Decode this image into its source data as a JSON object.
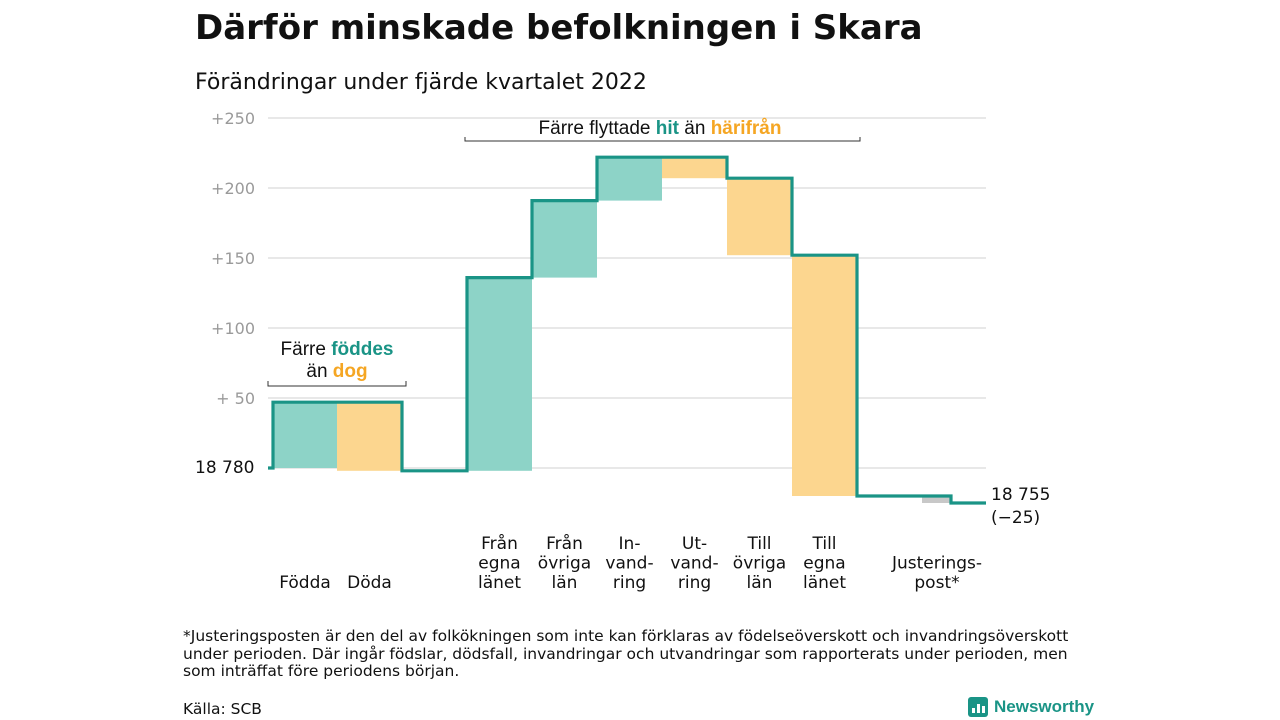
{
  "title": "Därför minskade befolkningen i Skara",
  "subtitle": "Förändringar under fjärde kvartalet 2022",
  "footnote": "*Justeringsposten är den del av folkökningen som inte kan förklaras av födelseöverskott och invandringsöverskott under perioden. Där ingår födslar, dödsfall, invandringar och utvandringar som rapporterats under perioden, men som inträffat före periodens början.",
  "source": "Källa: SCB",
  "logo": "Newsworthy",
  "colors": {
    "increase": "#8dd3c7",
    "decrease": "#fcd68f",
    "adjustment": "#c8c8c8",
    "line": "#1a9486",
    "accent_orange": "#f5a623",
    "grid": "#d9d9d9"
  },
  "chart_data": {
    "type": "waterfall",
    "start_label": "18 780",
    "start_value": 18780,
    "end_label": "18 755",
    "end_change_label": "(−25)",
    "end_value": 18755,
    "yticks": [
      "+250",
      "+200",
      "+150",
      "+100",
      "+ 50"
    ],
    "ytick_values": [
      250,
      200,
      150,
      100,
      50
    ],
    "ylim": [
      -30,
      260
    ],
    "steps": [
      {
        "label": [
          "Födda"
        ],
        "value": 47,
        "kind": "increase"
      },
      {
        "label": [
          "Döda"
        ],
        "value": -49,
        "kind": "decrease"
      },
      {
        "label": [
          "Från",
          "egna",
          "länet"
        ],
        "value": 138,
        "kind": "increase"
      },
      {
        "label": [
          "Från",
          "övriga",
          "län"
        ],
        "value": 55,
        "kind": "increase"
      },
      {
        "label": [
          "In-",
          "vand-",
          "ring"
        ],
        "value": 31,
        "kind": "increase"
      },
      {
        "label": [
          "Ut-",
          "vand-",
          "ring"
        ],
        "value": -15,
        "kind": "decrease"
      },
      {
        "label": [
          "Till",
          "övriga",
          "län"
        ],
        "value": -55,
        "kind": "decrease"
      },
      {
        "label": [
          "Till",
          "egna",
          "länet"
        ],
        "value": -172,
        "kind": "decrease"
      },
      {
        "label": [
          "Justerings-",
          "post*"
        ],
        "value": -5,
        "kind": "adjustment"
      }
    ],
    "annotations": {
      "births": {
        "l1_pre": "Färre ",
        "l1_hl": "föddes",
        "l2_pre": "än ",
        "l2_hl": "dog"
      },
      "migration": {
        "pre": "Färre flyttade ",
        "hl1": "hit",
        "mid": " än ",
        "hl2": "härifrån"
      }
    }
  }
}
